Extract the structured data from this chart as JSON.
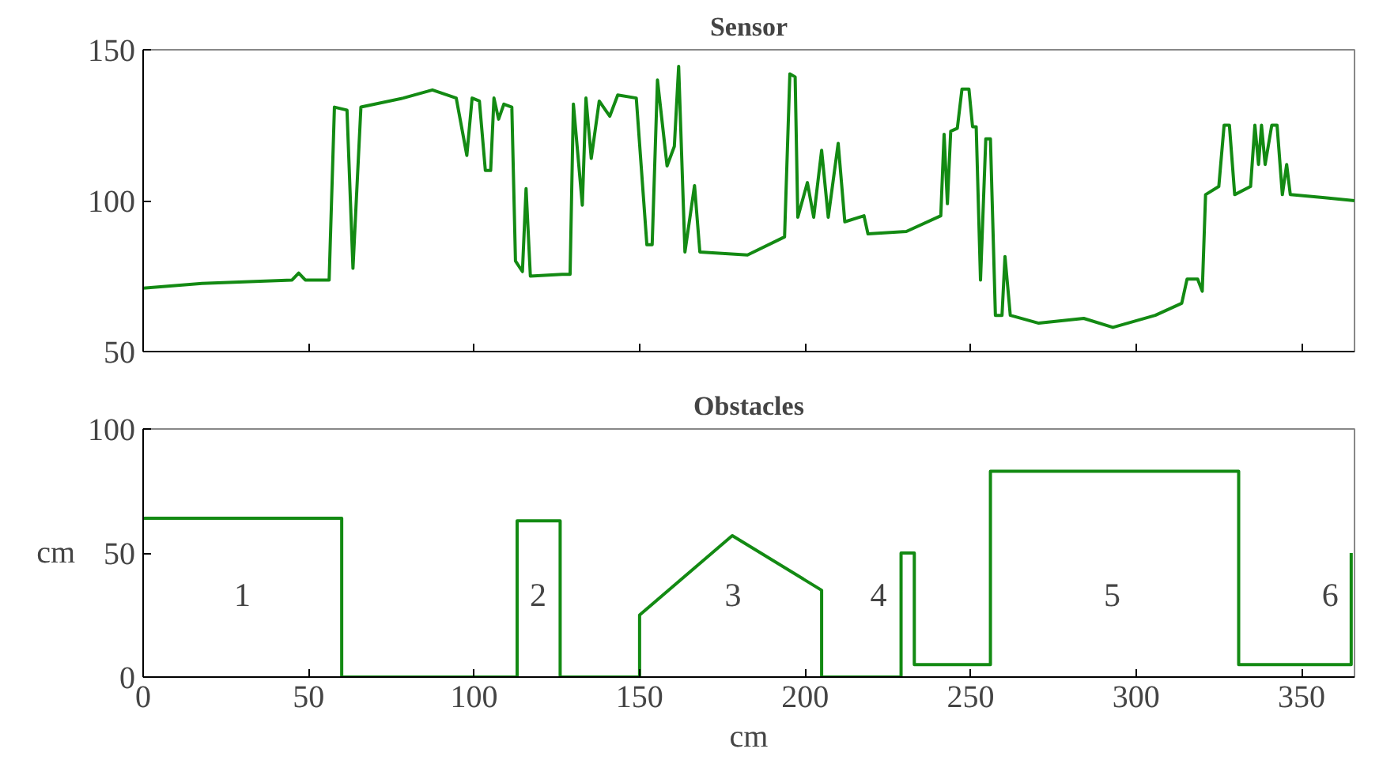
{
  "chart_data": [
    {
      "type": "line",
      "title": "Sensor",
      "xlim": [
        0,
        366
      ],
      "ylim": [
        50,
        150
      ],
      "xticks": [
        0,
        50,
        100,
        150,
        200,
        250,
        300,
        350
      ],
      "yticks": [
        50,
        100,
        150
      ],
      "tick_labels": "y",
      "grid": false,
      "series": [
        {
          "color": "#138a13",
          "x": [
            0,
            17.8,
            45,
            47,
            49,
            56.2,
            57.8,
            61.6,
            63.4,
            65.8,
            78.6,
            87.4,
            94.6,
            97.8,
            99.4,
            101.6,
            103.4,
            105,
            106,
            107.4,
            109,
            111.4,
            112.5,
            114.6,
            115.7,
            117,
            126.6,
            129,
            130,
            132.7,
            133.8,
            135.4,
            137.8,
            141,
            143.4,
            149,
            152.2,
            153.8,
            155.4,
            158.3,
            160.5,
            161.8,
            163.7,
            166.6,
            168.2,
            182.6,
            193.8,
            195.4,
            197,
            197.8,
            200.7,
            202.6,
            205,
            207,
            210,
            212,
            217.8,
            219,
            230.6,
            241,
            242,
            243,
            244,
            246,
            247.4,
            249.5,
            250.6,
            251.7,
            253,
            254.6,
            256,
            257.5,
            259.5,
            260.4,
            262,
            270.6,
            284.2,
            293,
            305.8,
            313.8,
            315.4,
            318.6,
            320,
            321,
            325,
            326.6,
            328.2,
            329.8,
            334.6,
            335.9,
            337,
            337.9,
            339,
            341,
            342.6,
            344.2,
            345.5,
            346.6,
            357,
            366
          ],
          "values": [
            71,
            72.6,
            73.7,
            76,
            73.7,
            73.7,
            131,
            130,
            77.6,
            131,
            134,
            136.7,
            134,
            115,
            134,
            133,
            110,
            110,
            134,
            127,
            132,
            131,
            80,
            76.5,
            104,
            75,
            75.6,
            75.6,
            132,
            98.5,
            134,
            114,
            133,
            128,
            135,
            134,
            85.4,
            85.4,
            140,
            111.5,
            118,
            144.5,
            83,
            105,
            83,
            82,
            88,
            142,
            141,
            94.5,
            106,
            94.5,
            116.7,
            94.5,
            119,
            93,
            95,
            89,
            89.8,
            95,
            122,
            99,
            123,
            124,
            137,
            137,
            124.5,
            124.5,
            73.7,
            120.5,
            120.5,
            62,
            62,
            81.5,
            62,
            59.4,
            61,
            58,
            62,
            66,
            74,
            74,
            70,
            102,
            104.7,
            125,
            125,
            102,
            104.7,
            125,
            112,
            125,
            112,
            125,
            125,
            102,
            112,
            102,
            101,
            100
          ]
        }
      ]
    },
    {
      "type": "line",
      "title": "Obstacles",
      "xlabel": "cm",
      "ylabel": "cm",
      "xlim": [
        0,
        366
      ],
      "ylim": [
        0,
        100
      ],
      "xticks": [
        0,
        50,
        100,
        150,
        200,
        250,
        300,
        350
      ],
      "yticks": [
        0,
        50,
        100
      ],
      "grid": false,
      "series": [
        {
          "color": "#138a13",
          "x": [
            0,
            60,
            60,
            113,
            113,
            126,
            126,
            150,
            150,
            178,
            205,
            205,
            229,
            229,
            233,
            233,
            256,
            256,
            331,
            331,
            365,
            365
          ],
          "values": [
            64,
            64,
            0,
            0,
            63,
            63,
            0,
            0,
            25,
            57,
            35,
            0,
            0,
            50,
            50,
            5,
            5,
            83,
            83,
            5,
            5,
            50
          ]
        }
      ],
      "annotations": [
        "1",
        "2",
        "3",
        "4",
        "5",
        "6"
      ]
    }
  ]
}
